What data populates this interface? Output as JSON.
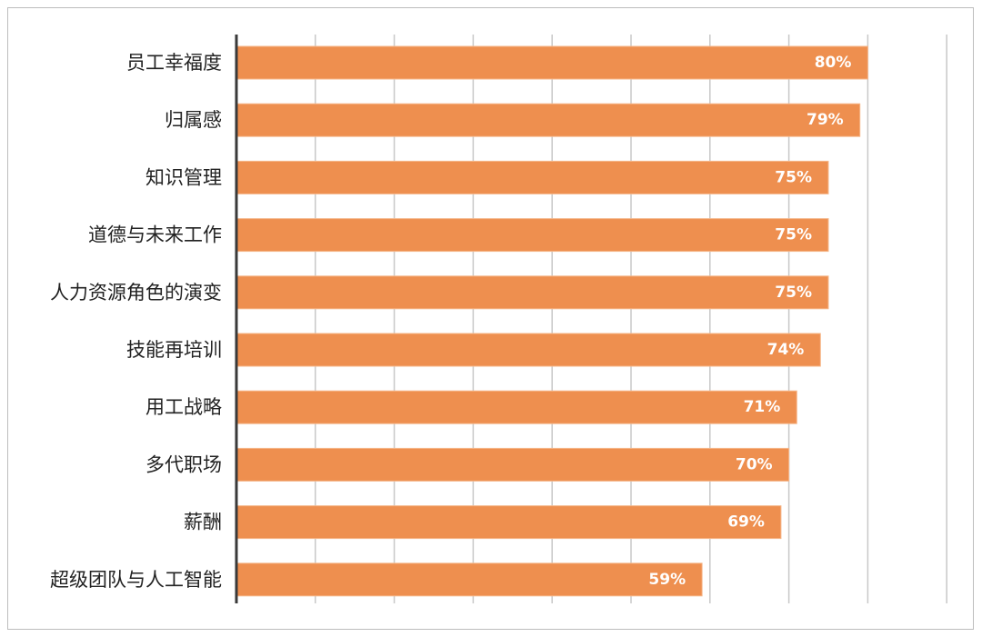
{
  "chart_data": {
    "type": "bar",
    "orientation": "horizontal",
    "categories": [
      "员工幸福度",
      "归属感",
      "知识管理",
      "道德与未来工作",
      "人力资源角色的演变",
      "技能再培训",
      "用工战略",
      "多代职场",
      "薪酬",
      "超级团队与人工智能"
    ],
    "values": [
      80,
      79,
      75,
      75,
      75,
      74,
      71,
      70,
      69,
      59
    ],
    "value_labels": [
      "80%",
      "79%",
      "75%",
      "75%",
      "75%",
      "74%",
      "71%",
      "70%",
      "69%",
      "59%"
    ],
    "xlim": [
      0,
      90
    ],
    "grid": true,
    "bar_color": "#ee8f4f",
    "axis_color": "#3a3a3a",
    "grid_color": "#c8c8c8"
  }
}
